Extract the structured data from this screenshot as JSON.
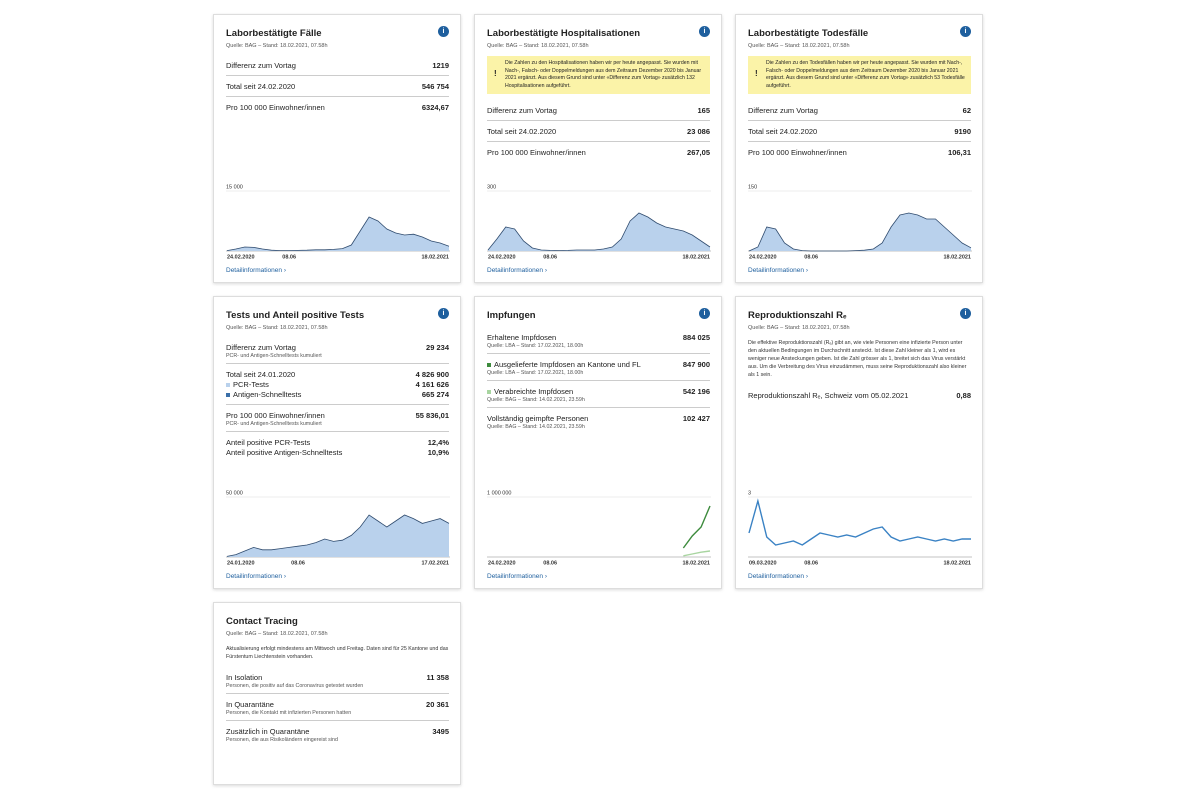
{
  "cards": [
    {
      "title": "Laborbestätigte Fälle",
      "source": "Quelle: BAG – Stand: 18.02.2021, 07.58h",
      "groups": [
        [
          {
            "label": "Differenz zum Vortag",
            "value": "1219"
          }
        ],
        [
          {
            "label": "Total seit 24.02.2020",
            "value": "546 754"
          }
        ],
        [
          {
            "label": "Pro 100 000 Einwohner/innen",
            "value": "6324,67"
          }
        ]
      ],
      "chart": {
        "type": "area",
        "ylim": [
          0,
          15000
        ],
        "yticks": [
          {
            "value": 15000,
            "label": "15 000"
          }
        ],
        "categories": [
          "24.02.2020",
          null,
          null,
          null,
          null,
          null,
          null,
          "08.06",
          null,
          null,
          null,
          null,
          null,
          null,
          null,
          null,
          null,
          null,
          null,
          null,
          null,
          null,
          null,
          null,
          null,
          "18.02.2021"
        ],
        "series": [
          {
            "color": "#2f4b6e",
            "fill": "#b9d1ec",
            "values": [
              100,
              500,
              1000,
              900,
              500,
              200,
              100,
              100,
              150,
              200,
              300,
              300,
              400,
              600,
              1500,
              5000,
              8500,
              7500,
              5500,
              4500,
              4000,
              4200,
              3500,
              2500,
              2000,
              1200
            ]
          }
        ]
      },
      "link": "Detailinformationen"
    },
    {
      "title": "Laborbestätigte Hospitalisationen",
      "source": "Quelle: BAG – Stand: 18.02.2021, 07.58h",
      "note": "Die Zahlen zu den Hospitalisationen haben wir per heute angepasst. Sie wurden mit Nach-, Falsch- oder Doppelmeldungen aus dem Zeitraum Dezember 2020 bis Januar 2021 ergänzt. Aus diesem Grund sind unter «Differenz zum Vortag» zusätzlich 132 Hospitalisationen aufgeführt.",
      "groups": [
        [
          {
            "label": "Differenz zum Vortag",
            "value": "165"
          }
        ],
        [
          {
            "label": "Total seit 24.02.2020",
            "value": "23 086"
          }
        ],
        [
          {
            "label": "Pro 100 000 Einwohner/innen",
            "value": "267,05"
          }
        ]
      ],
      "chart": {
        "type": "area",
        "ylim": [
          0,
          300
        ],
        "yticks": [
          300
        ],
        "categories": [
          "24.02.2020",
          null,
          null,
          null,
          null,
          null,
          null,
          "08.06",
          null,
          null,
          null,
          null,
          null,
          null,
          null,
          null,
          null,
          null,
          null,
          null,
          null,
          null,
          null,
          null,
          null,
          "18.02.2021"
        ],
        "series": [
          {
            "color": "#2f4b6e",
            "fill": "#b9d1ec",
            "values": [
              5,
              60,
              120,
              110,
              50,
              15,
              5,
              3,
              2,
              3,
              5,
              5,
              5,
              10,
              20,
              60,
              150,
              190,
              170,
              140,
              120,
              110,
              100,
              80,
              50,
              20
            ]
          }
        ]
      },
      "link": "Detailinformationen"
    },
    {
      "title": "Laborbestätigte Todesfälle",
      "source": "Quelle: BAG – Stand: 18.02.2021, 07.58h",
      "note": "Die Zahlen zu den Todesfällen haben wir per heute angepasst. Sie wurden mit Nach-, Falsch- oder Doppelmeldungen aus dem Zeitraum Dezember 2020 bis Januar 2021 ergänzt. Aus diesem Grund sind unter «Differenz zum Vortag» zusätzlich 53 Todesfälle aufgeführt.",
      "groups": [
        [
          {
            "label": "Differenz zum Vortag",
            "value": "62"
          }
        ],
        [
          {
            "label": "Total seit 24.02.2020",
            "value": "9190"
          }
        ],
        [
          {
            "label": "Pro 100 000 Einwohner/innen",
            "value": "106,31"
          }
        ]
      ],
      "chart": {
        "type": "area",
        "ylim": [
          0,
          150
        ],
        "yticks": [
          150
        ],
        "categories": [
          "24.02.2020",
          null,
          null,
          null,
          null,
          null,
          null,
          "08.06",
          null,
          null,
          null,
          null,
          null,
          null,
          null,
          null,
          null,
          null,
          null,
          null,
          null,
          null,
          null,
          null,
          null,
          "18.02.2021"
        ],
        "series": [
          {
            "color": "#2f4b6e",
            "fill": "#b9d1ec",
            "values": [
              0,
              10,
              60,
              55,
              20,
              5,
              1,
              0,
              0,
              0,
              0,
              0,
              1,
              2,
              5,
              20,
              60,
              90,
              95,
              90,
              80,
              80,
              60,
              40,
              20,
              8
            ]
          }
        ]
      },
      "link": "Detailinformationen"
    },
    {
      "title": "Tests und Anteil positive Tests",
      "source": "Quelle: BAG – Stand: 18.02.2021, 07.58h",
      "groups": [
        [
          {
            "label": "Differenz zum Vortag",
            "sub": "PCR- und Antigen-Schnelltests kumuliert",
            "value": "29 234"
          }
        ],
        [
          {
            "label": "Total seit 24.01.2020",
            "value": "4 826 900"
          },
          {
            "label": "PCR-Tests",
            "value": "4 161 626",
            "color": "#b9d1ec"
          },
          {
            "label": "Antigen-Schnelltests",
            "value": "665 274",
            "color": "#3a6fa8"
          }
        ],
        [
          {
            "label": "Pro 100 000 Einwohner/innen",
            "sub": "PCR- und Antigen-Schnelltests kumuliert",
            "value": "55 836,01"
          }
        ],
        [
          {
            "label": "Anteil positive PCR-Tests",
            "value": "12,4%"
          },
          {
            "label": "Anteil positive Antigen-Schnelltests",
            "value": "10,9%"
          }
        ]
      ],
      "chart": {
        "type": "area",
        "ylim": [
          0,
          50000
        ],
        "yticks": [
          {
            "value": 50000,
            "label": "50 000"
          }
        ],
        "categories": [
          "24.01.2020",
          null,
          null,
          null,
          null,
          null,
          null,
          null,
          "08.06",
          null,
          null,
          null,
          null,
          null,
          null,
          null,
          null,
          null,
          null,
          null,
          null,
          null,
          null,
          null,
          null,
          "17.02.2021"
        ],
        "series": [
          {
            "color": "#2f4b6e",
            "fill": "#b9d1ec",
            "values": [
              500,
              2000,
              5000,
              8000,
              6000,
              6000,
              7000,
              8000,
              9000,
              10000,
              12000,
              15000,
              13000,
              14000,
              18000,
              25000,
              35000,
              30000,
              25000,
              30000,
              35000,
              32000,
              28000,
              30000,
              32000,
              28000
            ]
          }
        ]
      },
      "link": "Detailinformationen"
    },
    {
      "title": "Impfungen",
      "groups": [
        [
          {
            "label": "Erhaltene Impfdosen",
            "sub": "Quelle: LBA – Stand: 17.02.2021, 18.00h",
            "value": "884 025"
          }
        ],
        [
          {
            "label": "Ausgelieferte Impfdosen an Kantone und FL",
            "sub": "Quelle: LBA – Stand: 17.02.2021, 18.00h",
            "value": "847 900",
            "color": "#3d8b3d"
          }
        ],
        [
          {
            "label": "Verabreichte Impfdosen",
            "sub": "Quelle: BAG – Stand: 14.02.2021, 23.59h",
            "value": "542 196",
            "color": "#a8d5a0"
          }
        ],
        [
          {
            "label": "Vollständig geimpfte Personen",
            "sub": "Quelle: BAG – Stand: 14.02.2021, 23.59h",
            "value": "102 427"
          }
        ]
      ],
      "chart": {
        "type": "line",
        "ylim": [
          0,
          1000000
        ],
        "yticks": [
          {
            "value": 1000000,
            "label": "1 000 000"
          }
        ],
        "categories": [
          "24.02.2020",
          null,
          null,
          null,
          null,
          null,
          null,
          "08.06",
          null,
          null,
          null,
          null,
          null,
          null,
          null,
          null,
          null,
          null,
          null,
          null,
          null,
          null,
          null,
          null,
          null,
          "18.02.2021"
        ],
        "series": [
          {
            "color": "#3d8b3d",
            "values": [
              null,
              null,
              null,
              null,
              null,
              null,
              null,
              null,
              null,
              null,
              null,
              null,
              null,
              null,
              null,
              null,
              null,
              null,
              null,
              null,
              null,
              null,
              150000,
              350000,
              500000,
              850000
            ]
          },
          {
            "color": "#a8d5a0",
            "values": [
              null,
              null,
              null,
              null,
              null,
              null,
              null,
              null,
              null,
              null,
              null,
              null,
              null,
              null,
              null,
              null,
              null,
              null,
              null,
              null,
              null,
              null,
              20000,
              50000,
              80000,
              100000
            ]
          }
        ]
      },
      "link": "Detailinformationen"
    },
    {
      "title": "Reproduktionszahl Rₑ",
      "source": "Quelle: BAG – Stand: 18.02.2021, 07.58h",
      "text": "Die effektive Reproduktionszahl (Rₑ) gibt an, wie viele Personen eine infizierte Person unter den aktuellen Bedingungen im Durchschnitt ansteckt. Ist diese Zahl kleiner als 1, wird es weniger neue Ansteckungen geben. Ist die Zahl grösser als 1, breitet sich das Virus verstärkt aus. Um die Verbreitung des Virus einzudämmen, muss seine Reproduktionszahl also kleiner als 1 sein.",
      "groups": [
        [
          {
            "label": "Reproduktionszahl Rₑ, Schweiz vom 05.02.2021",
            "value": "0,88"
          }
        ]
      ],
      "chart": {
        "type": "line",
        "ylim": [
          0,
          3
        ],
        "yticks": [
          3
        ],
        "categories": [
          "09.03.2020",
          null,
          null,
          null,
          null,
          null,
          null,
          "08.06",
          null,
          null,
          null,
          null,
          null,
          null,
          null,
          null,
          null,
          null,
          null,
          null,
          null,
          null,
          null,
          null,
          null,
          "18.02.2021"
        ],
        "series": [
          {
            "color": "#3a82c4",
            "values": [
              1.2,
              2.8,
              1.0,
              0.6,
              0.7,
              0.8,
              0.6,
              0.9,
              1.2,
              1.1,
              1.0,
              1.1,
              1.0,
              1.2,
              1.4,
              1.5,
              1.0,
              0.8,
              0.9,
              1.0,
              0.9,
              0.8,
              0.9,
              0.8,
              0.9,
              0.9
            ]
          }
        ]
      },
      "link": "Detailinformationen"
    },
    {
      "title": "Contact Tracing",
      "source": "Quelle: BAG – Stand: 18.02.2021, 07.58h",
      "text": "Aktualisierung erfolgt mindestens am Mittwoch und Freitag. Daten sind für 25 Kantone und das Fürstentum Liechtenstein vorhanden.",
      "groups": [
        [
          {
            "label": "In Isolation",
            "sub": "Personen, die positiv auf das Coronavirus getestet wurden",
            "value": "11 358"
          }
        ],
        [
          {
            "label": "In Quarantäne",
            "sub": "Personen, die Kontakt mit infizierten Personen hatten",
            "value": "20 361"
          }
        ],
        [
          {
            "label": "Zusätzlich in Quarantäne",
            "sub": "Personen, die aus Risikoländern eingereist sind",
            "value": "3495"
          }
        ]
      ]
    }
  ]
}
